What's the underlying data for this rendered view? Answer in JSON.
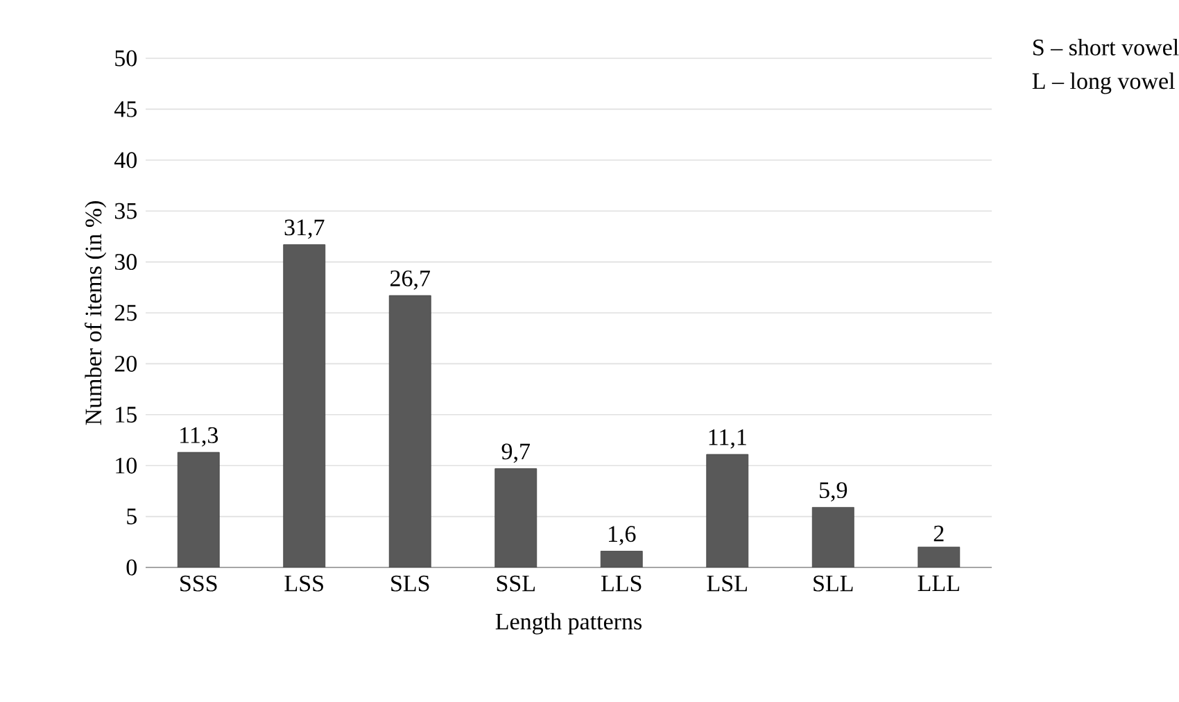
{
  "chart_data": {
    "type": "bar",
    "xlabel": "Length patterns",
    "ylabel": "Number of items (in %)",
    "categories": [
      "SSS",
      "LSS",
      "SLS",
      "SSL",
      "LLS",
      "LSL",
      "SLL",
      "LLL"
    ],
    "values": [
      11.3,
      31.7,
      26.7,
      9.7,
      1.6,
      11.1,
      5.9,
      2
    ],
    "value_labels": [
      "11,3",
      "31,7",
      "26,7",
      "9,7",
      "1,6",
      "11,1",
      "5,9",
      "2"
    ],
    "color": "#595959",
    "ylim": [
      0,
      50
    ],
    "yticks": [
      0,
      5,
      10,
      15,
      20,
      25,
      30,
      35,
      40,
      45,
      50
    ],
    "grid": "y",
    "annotations": [
      "S – short vowel",
      "L – long vowel"
    ]
  }
}
